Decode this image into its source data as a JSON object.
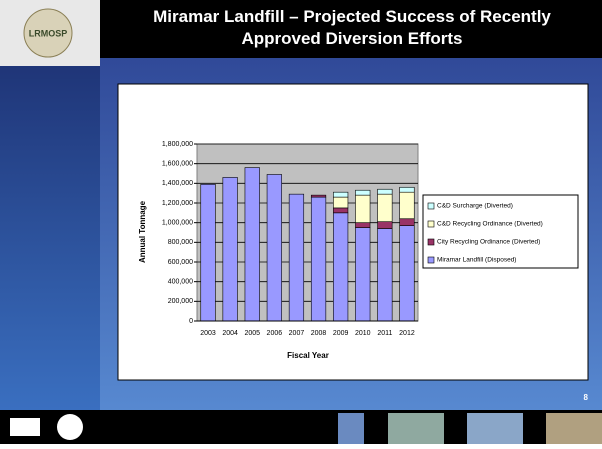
{
  "slide": {
    "logo_text": "LRMOSP",
    "page_number": "8"
  },
  "chart_data": {
    "type": "stacked_bar",
    "title": "Miramar Landfill – Projected Success of Recently Approved Diversion Efforts",
    "x_label": "Fiscal Year",
    "y_label": "Annual Tonnage",
    "categories": [
      "2003",
      "2004",
      "2005",
      "2006",
      "2007",
      "2008",
      "2009",
      "2010",
      "2011",
      "2012"
    ],
    "series": [
      {
        "name": "Miramar Landfill (Disposed)",
        "color": "#9999ff",
        "values": [
          1390000,
          1460000,
          1560000,
          1490000,
          1290000,
          1260000,
          1100000,
          950000,
          940000,
          970000
        ]
      },
      {
        "name": "City Recycling Ordinance (Diverted)",
        "color": "#993366",
        "values": [
          0,
          0,
          0,
          0,
          0,
          20000,
          50000,
          50000,
          70000,
          70000
        ]
      },
      {
        "name": "C&D Recycling Ordinance (Diverted)",
        "color": "#ffffcc",
        "values": [
          0,
          0,
          0,
          0,
          0,
          0,
          110000,
          280000,
          280000,
          270000
        ]
      },
      {
        "name": "C&D Surcharge (Diverted)",
        "color": "#ccffff",
        "values": [
          0,
          0,
          0,
          0,
          0,
          0,
          50000,
          50000,
          50000,
          50000
        ]
      }
    ],
    "ylim": [
      0,
      1800000
    ],
    "yticks": [
      0,
      {
        "value": 200000,
        "label": "200,000"
      },
      {
        "value": 400000,
        "label": "400,000"
      },
      {
        "value": 600000,
        "label": "600,000"
      },
      {
        "value": 800000,
        "label": "800,000"
      },
      {
        "value": 1000000,
        "label": "1,000,000"
      },
      {
        "value": 1200000,
        "label": "1,200,000"
      },
      {
        "value": 1400000,
        "label": "1,400,000"
      },
      {
        "value": 1600000,
        "label": "1,600,000"
      },
      {
        "value": 1800000,
        "label": "1,800,000"
      }
    ],
    "grid": true,
    "legend": "right"
  }
}
